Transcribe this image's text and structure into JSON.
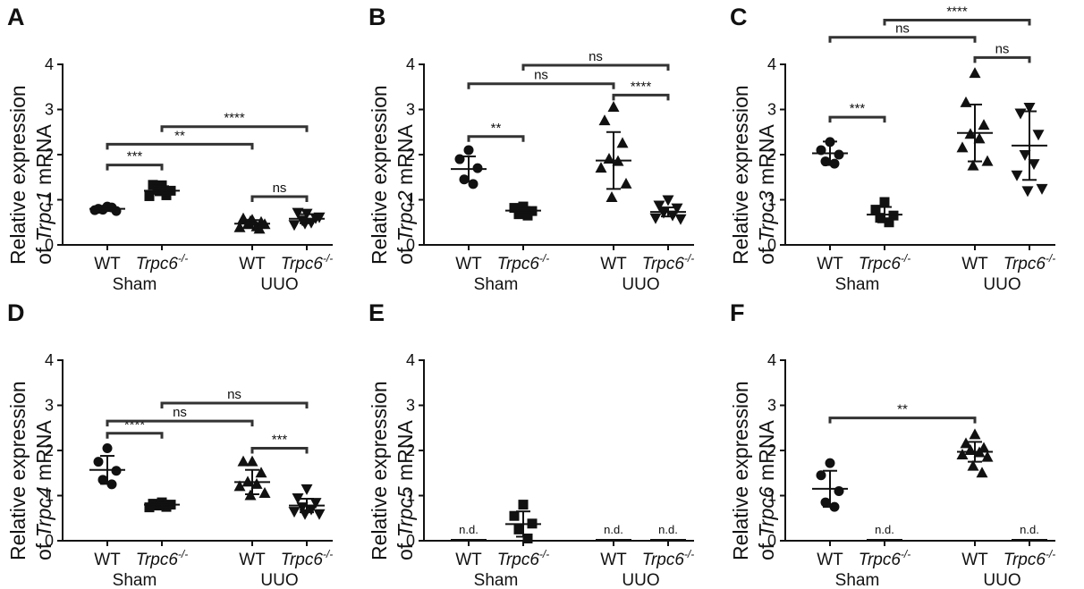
{
  "figure": {
    "y_ticks": [
      "0",
      "1",
      "2",
      "3",
      "4"
    ],
    "categories": [
      "WT",
      "Trpc6",
      "WT",
      "Trpc6"
    ],
    "categories_superscript": [
      "",
      "-/-",
      "",
      "-/-"
    ],
    "groups": [
      "Sham",
      "UUO"
    ],
    "ylabel_prefix": "Relative expression",
    "ylabel_of": "of ",
    "ylabel_suffix": " mRNA",
    "nd_label": "n.d."
  },
  "chart_data": [
    {
      "panel": "A",
      "gene": "Trpc1",
      "type": "scatter",
      "ylim": [
        0,
        4
      ],
      "series": [
        {
          "name": "WT",
          "group": "Sham",
          "marker": "circle",
          "points": [
            0.85,
            0.8,
            0.75,
            0.78,
            0.83,
            0.77
          ],
          "mean": 0.8,
          "sd": 0.05
        },
        {
          "name": "Trpc6-/-",
          "group": "Sham",
          "marker": "square",
          "points": [
            1.32,
            1.33,
            1.2,
            1.22,
            1.1,
            1.08
          ],
          "mean": 1.2,
          "sd": 0.1
        },
        {
          "name": "WT",
          "group": "UUO",
          "marker": "triangle-up",
          "points": [
            0.55,
            0.58,
            0.5,
            0.45,
            0.4,
            0.38,
            0.45,
            0.52,
            0.35
          ],
          "mean": 0.47,
          "sd": 0.08
        },
        {
          "name": "Trpc6-/-",
          "group": "UUO",
          "marker": "triangle-down",
          "points": [
            0.7,
            0.72,
            0.6,
            0.55,
            0.5,
            0.45,
            0.62,
            0.48
          ],
          "mean": 0.58,
          "sd": 0.1
        }
      ],
      "brackets": [
        {
          "from": 0,
          "to": 1,
          "y": 1.77,
          "label": "***"
        },
        {
          "from": 0,
          "to": 2,
          "y": 2.23,
          "label": "**"
        },
        {
          "from": 1,
          "to": 3,
          "y": 2.62,
          "label": "****"
        },
        {
          "from": 2,
          "to": 3,
          "y": 1.07,
          "label": "ns"
        }
      ]
    },
    {
      "panel": "B",
      "gene": "Trpc2",
      "type": "scatter",
      "ylim": [
        0,
        4
      ],
      "series": [
        {
          "name": "WT",
          "group": "Sham",
          "marker": "circle",
          "points": [
            2.1,
            1.9,
            1.7,
            1.45,
            1.35
          ],
          "mean": 1.68,
          "sd": 0.28
        },
        {
          "name": "Trpc6-/-",
          "group": "Sham",
          "marker": "square",
          "points": [
            0.85,
            0.82,
            0.75,
            0.68,
            0.65
          ],
          "mean": 0.76,
          "sd": 0.08
        },
        {
          "name": "WT",
          "group": "UUO",
          "marker": "triangle-up",
          "points": [
            3.05,
            2.75,
            2.25,
            1.9,
            1.85,
            1.7,
            1.35,
            1.05
          ],
          "mean": 1.87,
          "sd": 0.63
        },
        {
          "name": "Trpc6-/-",
          "group": "UUO",
          "marker": "triangle-down",
          "points": [
            1.0,
            0.88,
            0.82,
            0.72,
            0.66,
            0.6,
            0.58
          ],
          "mean": 0.73,
          "sd": 0.1
        }
      ],
      "brackets": [
        {
          "from": 0,
          "to": 1,
          "y": 2.4,
          "label": "**"
        },
        {
          "from": 0,
          "to": 2,
          "y": 3.57,
          "label": "ns"
        },
        {
          "from": 1,
          "to": 3,
          "y": 3.98,
          "label": "ns"
        },
        {
          "from": 2,
          "to": 3,
          "y": 3.32,
          "label": "****"
        }
      ]
    },
    {
      "panel": "C",
      "gene": "Trpc3",
      "type": "scatter",
      "ylim": [
        0,
        4
      ],
      "series": [
        {
          "name": "WT",
          "group": "Sham",
          "marker": "circle",
          "points": [
            2.28,
            2.1,
            2.0,
            1.85,
            1.8
          ],
          "mean": 2.03,
          "sd": 0.26
        },
        {
          "name": "Trpc6-/-",
          "group": "Sham",
          "marker": "square",
          "points": [
            0.95,
            0.78,
            0.65,
            0.6,
            0.5
          ],
          "mean": 0.67,
          "sd": 0.17
        },
        {
          "name": "WT",
          "group": "UUO",
          "marker": "triangle-up",
          "points": [
            3.8,
            3.15,
            2.65,
            2.45,
            2.35,
            2.15,
            1.85,
            1.75
          ],
          "mean": 2.48,
          "sd": 0.63
        },
        {
          "name": "Trpc6-/-",
          "group": "UUO",
          "marker": "triangle-down",
          "points": [
            3.05,
            2.92,
            2.45,
            2.0,
            1.8,
            1.55,
            1.25,
            1.2
          ],
          "mean": 2.2,
          "sd": 0.76
        }
      ],
      "brackets": [
        {
          "from": 0,
          "to": 1,
          "y": 2.83,
          "label": "***"
        },
        {
          "from": 0,
          "to": 2,
          "y": 4.6,
          "label": "ns"
        },
        {
          "from": 1,
          "to": 3,
          "y": 4.98,
          "label": "****"
        },
        {
          "from": 2,
          "to": 3,
          "y": 4.15,
          "label": "ns"
        }
      ]
    },
    {
      "panel": "D",
      "gene": "Trpc4",
      "type": "scatter",
      "ylim": [
        0,
        4
      ],
      "series": [
        {
          "name": "WT",
          "group": "Sham",
          "marker": "circle",
          "points": [
            2.05,
            1.75,
            1.55,
            1.35,
            1.25
          ],
          "mean": 1.57,
          "sd": 0.31
        },
        {
          "name": "Trpc6-/-",
          "group": "Sham",
          "marker": "square",
          "points": [
            0.85,
            0.82,
            0.8,
            0.78,
            0.75,
            0.74
          ],
          "mean": 0.8,
          "sd": 0.05
        },
        {
          "name": "WT",
          "group": "UUO",
          "marker": "triangle-up",
          "points": [
            1.75,
            1.75,
            1.5,
            1.3,
            1.25,
            1.2,
            1.05,
            1.0
          ],
          "mean": 1.3,
          "sd": 0.27
        },
        {
          "name": "Trpc6-/-",
          "group": "UUO",
          "marker": "triangle-down",
          "points": [
            1.15,
            0.95,
            0.85,
            0.75,
            0.7,
            0.65,
            0.6,
            0.6
          ],
          "mean": 0.78,
          "sd": 0.15
        }
      ],
      "brackets": [
        {
          "from": 0,
          "to": 1,
          "y": 2.38,
          "label": "****"
        },
        {
          "from": 0,
          "to": 2,
          "y": 2.65,
          "label": "ns"
        },
        {
          "from": 1,
          "to": 3,
          "y": 3.05,
          "label": "ns"
        },
        {
          "from": 2,
          "to": 3,
          "y": 2.05,
          "label": "***"
        }
      ]
    },
    {
      "panel": "E",
      "gene": "Trpc5",
      "type": "scatter",
      "ylim": [
        0,
        4
      ],
      "series": [
        {
          "name": "WT",
          "group": "Sham",
          "marker": "none",
          "points": [],
          "nd": true
        },
        {
          "name": "Trpc6-/-",
          "group": "Sham",
          "marker": "square",
          "points": [
            0.8,
            0.55,
            0.38,
            0.25,
            0.05
          ],
          "mean": 0.37,
          "sd": 0.28
        },
        {
          "name": "WT",
          "group": "UUO",
          "marker": "none",
          "points": [],
          "nd": true
        },
        {
          "name": "Trpc6-/-",
          "group": "UUO",
          "marker": "none",
          "points": [],
          "nd": true
        }
      ],
      "brackets": []
    },
    {
      "panel": "F",
      "gene": "Trpc6",
      "type": "scatter",
      "ylim": [
        0,
        4
      ],
      "series": [
        {
          "name": "WT",
          "group": "Sham",
          "marker": "circle",
          "points": [
            1.72,
            1.45,
            1.1,
            0.85,
            0.75
          ],
          "mean": 1.15,
          "sd": 0.4
        },
        {
          "name": "Trpc6-/-",
          "group": "Sham",
          "marker": "none",
          "points": [],
          "nd": true
        },
        {
          "name": "WT",
          "group": "UUO",
          "marker": "triangle-up",
          "points": [
            2.35,
            2.15,
            2.05,
            2.0,
            1.95,
            1.9,
            1.85,
            1.65,
            1.5
          ],
          "mean": 1.97,
          "sd": 0.22
        },
        {
          "name": "Trpc6-/-",
          "group": "UUO",
          "marker": "none",
          "points": [],
          "nd": true
        }
      ],
      "brackets": [
        {
          "from": 0,
          "to": 2,
          "y": 2.72,
          "label": "**"
        }
      ]
    }
  ]
}
